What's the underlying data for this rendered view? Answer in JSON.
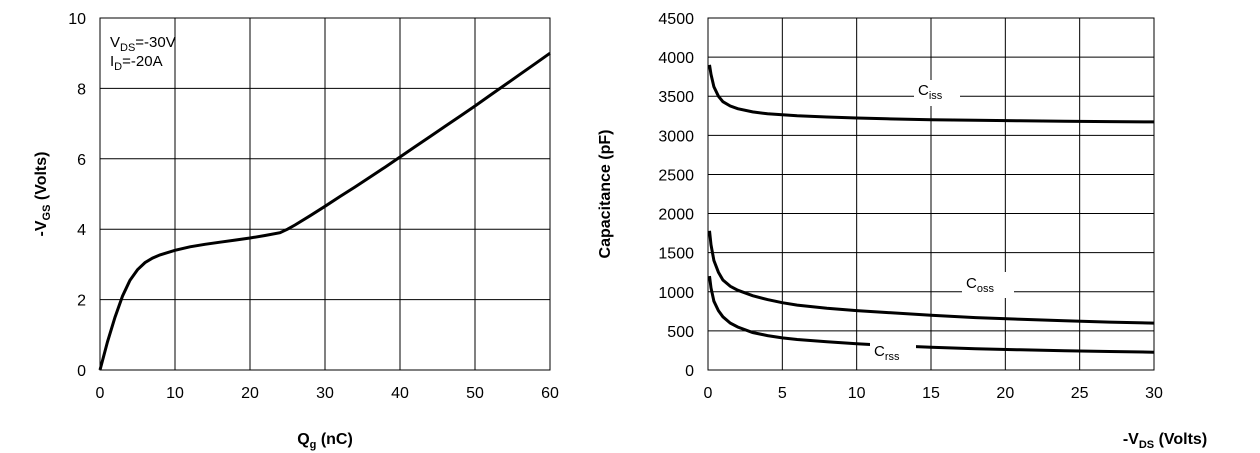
{
  "chart_data": [
    {
      "type": "line",
      "xlabel": "Q",
      "xlabel_sub": "g",
      "xlabel_unit": " (nC)",
      "ylabel_prefix": "-V",
      "ylabel_sub": "GS",
      "ylabel_unit": " (Volts)",
      "xlim": [
        0,
        60
      ],
      "ylim": [
        0,
        10
      ],
      "xticks": [
        "0",
        "10",
        "20",
        "30",
        "40",
        "50",
        "60"
      ],
      "yticks": [
        "0",
        "2",
        "4",
        "6",
        "8",
        "10"
      ],
      "grid": true,
      "annotations": [
        {
          "main": "V",
          "sub": "DS",
          "rest": "=-30V"
        },
        {
          "main": "I",
          "sub": "D",
          "rest": "=-20A"
        }
      ],
      "series": [
        {
          "x": [
            0,
            1,
            2,
            3,
            4,
            5,
            6,
            7,
            8,
            10,
            12,
            14,
            16,
            18,
            20,
            22,
            24,
            25,
            26,
            28,
            30,
            32,
            34,
            36,
            38,
            40,
            42,
            44,
            46,
            48,
            50,
            52,
            54,
            56,
            58,
            60
          ],
          "y": [
            0,
            0.8,
            1.5,
            2.1,
            2.55,
            2.85,
            3.05,
            3.18,
            3.27,
            3.4,
            3.5,
            3.57,
            3.63,
            3.69,
            3.75,
            3.82,
            3.9,
            4.0,
            4.12,
            4.38,
            4.65,
            4.93,
            5.2,
            5.48,
            5.76,
            6.05,
            6.34,
            6.63,
            6.92,
            7.21,
            7.5,
            7.8,
            8.1,
            8.4,
            8.7,
            9.0
          ]
        }
      ]
    },
    {
      "type": "line",
      "xlabel_prefix": "-V",
      "xlabel_sub": "DS",
      "xlabel_unit": " (Volts)",
      "ylabel": "Capacitance (pF)",
      "xlim": [
        0,
        30
      ],
      "ylim": [
        0,
        4500
      ],
      "xticks": [
        "0",
        "5",
        "10",
        "15",
        "20",
        "25",
        "30"
      ],
      "yticks": [
        "0",
        "500",
        "1000",
        "1500",
        "2000",
        "2500",
        "3000",
        "3500",
        "4000",
        "4500"
      ],
      "grid": true,
      "series": [
        {
          "name": "C",
          "name_sub": "iss",
          "x": [
            0.1,
            0.2,
            0.4,
            0.7,
            1,
            1.5,
            2,
            3,
            4,
            5,
            6,
            8,
            10,
            12,
            15,
            18,
            21,
            24,
            27,
            30
          ],
          "y": [
            3900,
            3780,
            3620,
            3500,
            3430,
            3375,
            3340,
            3300,
            3275,
            3262,
            3250,
            3235,
            3222,
            3212,
            3200,
            3192,
            3186,
            3180,
            3176,
            3172
          ]
        },
        {
          "name": "C",
          "name_sub": "oss",
          "x": [
            0.1,
            0.2,
            0.4,
            0.7,
            1,
            1.5,
            2,
            3,
            4,
            5,
            6,
            8,
            10,
            12,
            15,
            18,
            21,
            24,
            27,
            30
          ],
          "y": [
            1780,
            1600,
            1400,
            1250,
            1150,
            1070,
            1020,
            950,
            900,
            860,
            830,
            790,
            760,
            735,
            700,
            670,
            648,
            630,
            612,
            600
          ]
        },
        {
          "name": "C",
          "name_sub": "rss",
          "x": [
            0.1,
            0.2,
            0.4,
            0.7,
            1,
            1.5,
            2,
            3,
            4,
            5,
            6,
            8,
            10,
            12,
            15,
            18,
            21,
            24,
            27,
            30
          ],
          "y": [
            1200,
            1050,
            880,
            760,
            680,
            600,
            550,
            480,
            440,
            410,
            390,
            360,
            335,
            315,
            290,
            272,
            258,
            246,
            236,
            228
          ]
        }
      ]
    }
  ]
}
